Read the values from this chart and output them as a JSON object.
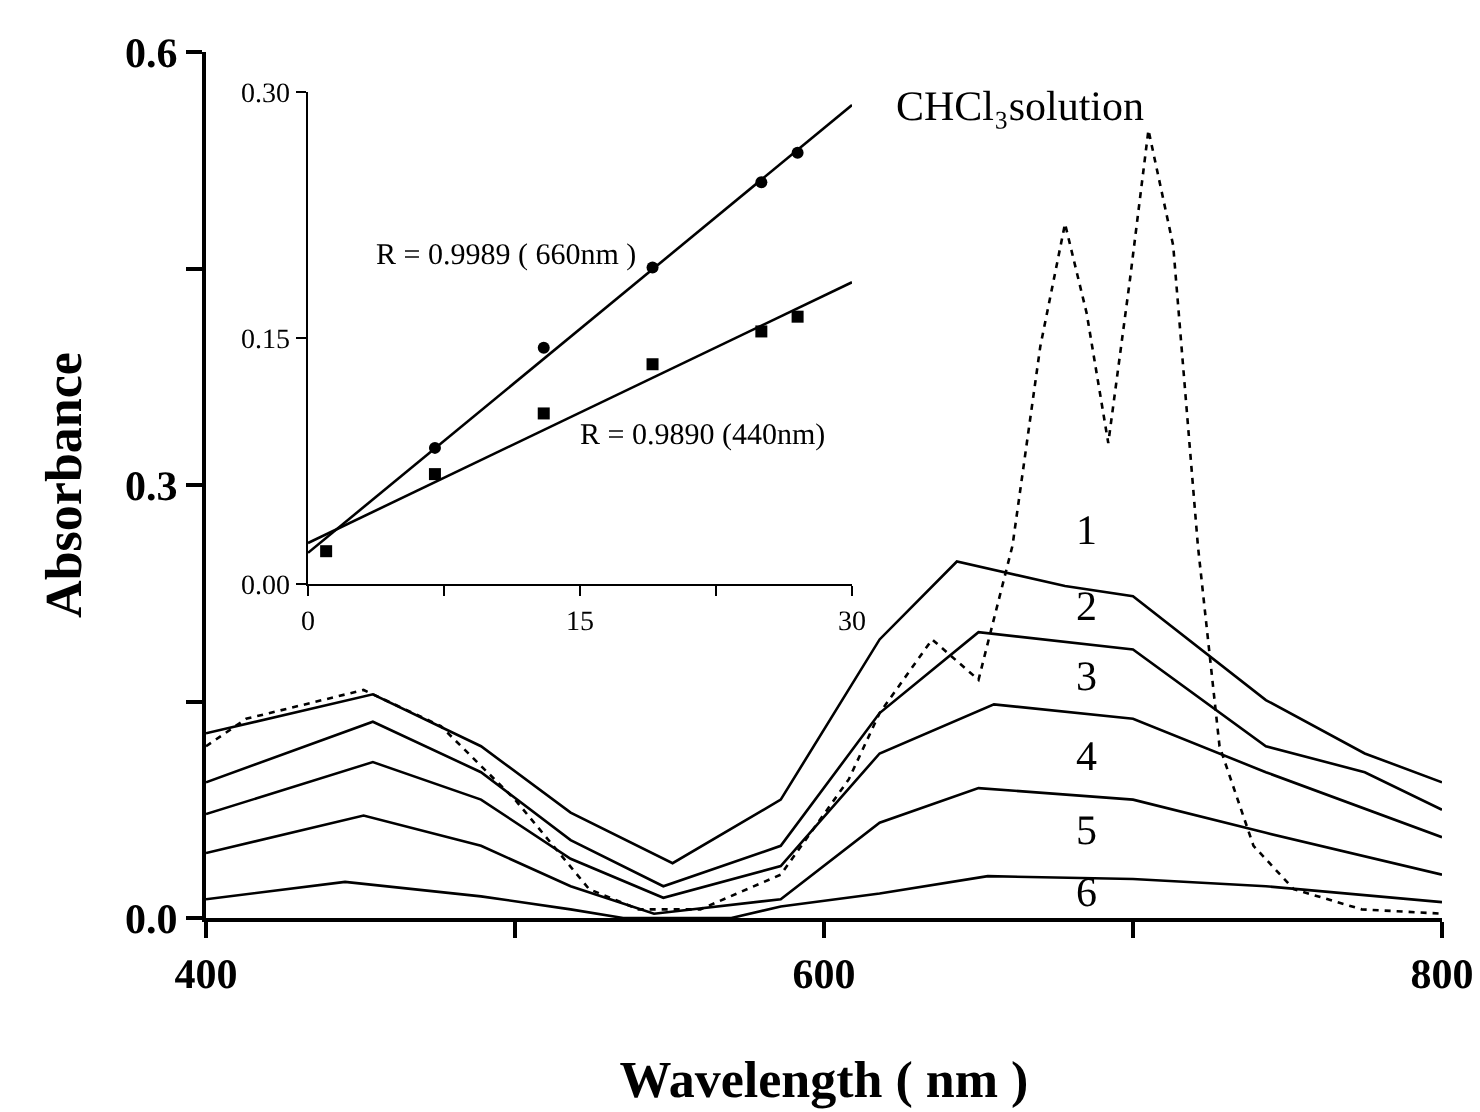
{
  "chart_data": [
    {
      "type": "line",
      "xlabel": "Wavelength ( nm )",
      "ylabel": "Absorbance",
      "xlim": [
        400,
        800
      ],
      "ylim": [
        0,
        0.6
      ],
      "xticks": [
        400,
        {
          "value": 500,
          "label": null
        },
        600,
        {
          "value": 700,
          "label": null
        },
        800
      ],
      "yticks": [
        {
          "value": 0,
          "label": "0.0"
        },
        {
          "value": 0.15,
          "label": null
        },
        {
          "value": 0.3,
          "label": "0.3"
        },
        {
          "value": 0.45,
          "label": null
        },
        {
          "value": 0.6,
          "label": "0.6"
        }
      ],
      "grid": false,
      "marker": "none",
      "series": [
        {
          "color": "#000000",
          "line_style": "solid",
          "x": [
            400,
            454,
            489,
            518,
            551,
            586,
            618,
            643,
            678,
            700,
            743,
            775,
            800
          ],
          "values": [
            0.128,
            0.155,
            0.119,
            0.073,
            0.038,
            0.082,
            0.193,
            0.247,
            0.23,
            0.223,
            0.151,
            0.114,
            0.094
          ]
        },
        {
          "color": "#000000",
          "line_style": "solid",
          "x": [
            400,
            454,
            489,
            518,
            548,
            586,
            618,
            650,
            700,
            743,
            775,
            800
          ],
          "values": [
            0.094,
            0.136,
            0.101,
            0.054,
            0.022,
            0.05,
            0.142,
            0.198,
            0.186,
            0.119,
            0.101,
            0.075
          ]
        },
        {
          "color": "#000000",
          "line_style": "solid",
          "x": [
            400,
            454,
            489,
            518,
            548,
            586,
            618,
            655,
            700,
            743,
            800
          ],
          "values": [
            0.072,
            0.108,
            0.082,
            0.041,
            0.014,
            0.036,
            0.114,
            0.148,
            0.138,
            0.101,
            0.056
          ]
        },
        {
          "color": "#000000",
          "line_style": "solid",
          "x": [
            400,
            451,
            489,
            518,
            545,
            586,
            618,
            650,
            700,
            743,
            800
          ],
          "values": [
            0.045,
            0.071,
            0.05,
            0.022,
            0.003,
            0.013,
            0.066,
            0.09,
            0.082,
            0.059,
            0.03
          ]
        },
        {
          "color": "#000000",
          "line_style": "solid",
          "x": [
            400,
            445,
            489,
            518,
            535,
            570,
            586,
            618,
            653,
            700,
            743,
            800
          ],
          "values": [
            0.013,
            0.025,
            0.015,
            0.006,
            0,
            0,
            0.008,
            0.017,
            0.029,
            0.027,
            0.022,
            0.011
          ]
        },
        {
          "color": "#000000",
          "line_style": "dotted",
          "x": [
            400,
            413,
            451,
            476,
            500,
            524,
            540,
            560,
            586,
            608,
            618,
            635,
            650,
            661,
            670,
            678,
            685,
            692,
            699,
            705,
            713,
            721,
            728,
            739,
            752,
            774,
            800
          ],
          "values": [
            0.119,
            0.138,
            0.158,
            0.133,
            0.082,
            0.02,
            0.006,
            0.006,
            0.03,
            0.096,
            0.142,
            0.193,
            0.165,
            0.258,
            0.396,
            0.481,
            0.419,
            0.329,
            0.442,
            0.546,
            0.466,
            0.258,
            0.119,
            0.05,
            0.02,
            0.006,
            0.003
          ]
        }
      ],
      "annotations": [
        "CHCl₃solution",
        "1",
        "2",
        "3",
        "4",
        "5",
        "6"
      ]
    },
    {
      "type": "scatter",
      "xlim": [
        0,
        30
      ],
      "ylim": [
        0,
        0.3
      ],
      "xticks": [
        0,
        {
          "value": 7.5,
          "label": null
        },
        15,
        {
          "value": 22.5,
          "label": null
        },
        30
      ],
      "yticks": [
        {
          "value": 0,
          "label": "0.00"
        },
        {
          "value": 0.15,
          "label": "0.15"
        },
        {
          "value": 0.3,
          "label": "0.30"
        }
      ],
      "grid": false,
      "series": [
        {
          "color": "#000000",
          "marker": "circle",
          "x": [
            7,
            13,
            19,
            25,
            27
          ],
          "values": [
            0.083,
            0.144,
            0.193,
            0.245,
            0.263
          ]
        },
        {
          "color": "#000000",
          "marker": "square",
          "x": [
            1,
            7,
            13,
            19,
            25,
            27
          ],
          "values": [
            0.02,
            0.067,
            0.104,
            0.134,
            0.154,
            0.163
          ]
        },
        {
          "type": "line",
          "color": "#000000",
          "marker": "none",
          "x": [
            0,
            30
          ],
          "values": [
            0.019,
            0.292
          ]
        },
        {
          "type": "line",
          "color": "#000000",
          "marker": "none",
          "x": [
            0,
            30
          ],
          "values": [
            0.025,
            0.184
          ]
        }
      ],
      "annotations": [
        "R = 0.9989 ( 660nm )",
        "R = 0.9890 (440nm)"
      ]
    }
  ]
}
